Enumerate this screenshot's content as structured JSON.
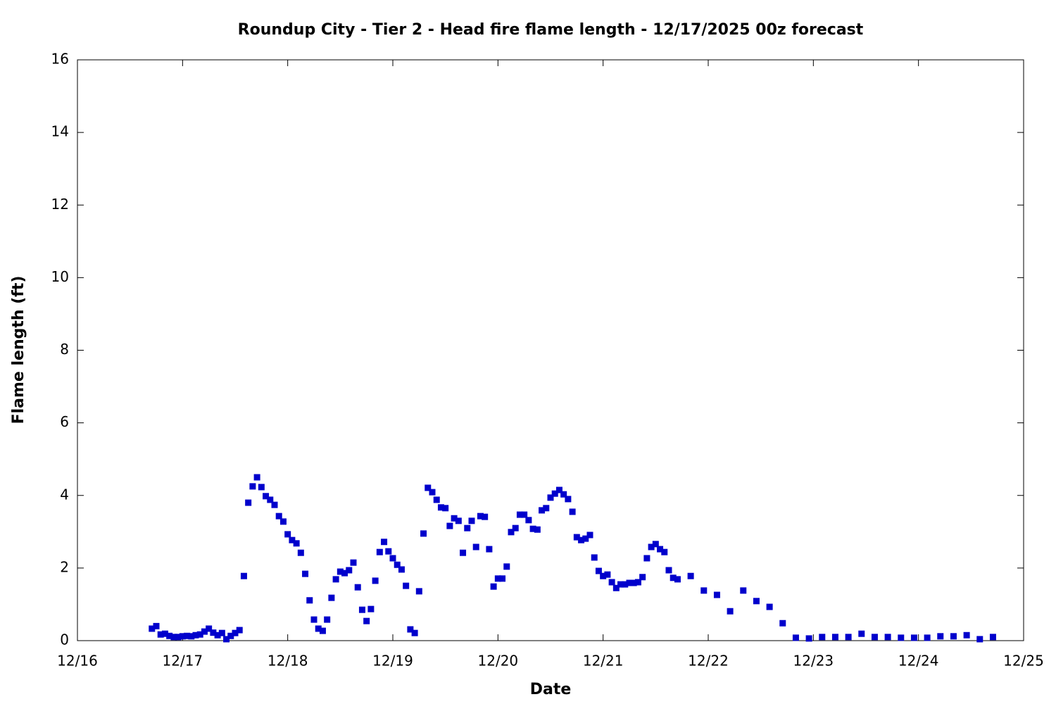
{
  "chart_data": {
    "type": "scatter",
    "title": "Roundup City - Tier 2 - Head fire flame length - 12/17/2025 00z forecast",
    "xlabel": "Date",
    "ylabel": "Flame length (ft)",
    "xlim": [
      0,
      216
    ],
    "xticks": [
      {
        "value": 0,
        "label": "12/16"
      },
      {
        "value": 24,
        "label": "12/17"
      },
      {
        "value": 48,
        "label": "12/18"
      },
      {
        "value": 72,
        "label": "12/19"
      },
      {
        "value": 96,
        "label": "12/20"
      },
      {
        "value": 120,
        "label": "12/21"
      },
      {
        "value": 144,
        "label": "12/22"
      },
      {
        "value": 168,
        "label": "12/23"
      },
      {
        "value": 192,
        "label": "12/24"
      },
      {
        "value": 216,
        "label": "12/25"
      }
    ],
    "ylim": [
      0,
      16
    ],
    "yticks": [
      0,
      2,
      4,
      6,
      8,
      10,
      12,
      14,
      16
    ],
    "color": "#0000cc",
    "x": [
      17,
      18,
      19,
      20,
      21,
      22,
      23,
      24,
      25,
      26,
      27,
      28,
      29,
      30,
      31,
      32,
      33,
      34,
      35,
      36,
      37,
      38,
      39,
      40,
      41,
      42,
      43,
      44,
      45,
      46,
      47,
      48,
      49,
      50,
      51,
      52,
      53,
      54,
      55,
      56,
      57,
      58,
      59,
      60,
      61,
      62,
      63,
      64,
      65,
      66,
      67,
      68,
      69,
      70,
      71,
      72,
      73,
      74,
      75,
      76,
      77,
      78,
      79,
      80,
      81,
      82,
      83,
      84,
      85,
      86,
      87,
      88,
      89,
      90,
      91,
      92,
      93,
      94,
      95,
      96,
      97,
      98,
      99,
      100,
      101,
      102,
      103,
      104,
      105,
      106,
      107,
      108,
      109,
      110,
      111,
      112,
      113,
      114,
      115,
      116,
      117,
      118,
      119,
      120,
      121,
      122,
      123,
      124,
      125,
      126,
      127,
      128,
      129,
      130,
      131,
      132,
      133,
      134,
      135,
      136,
      137,
      140,
      143,
      146,
      149,
      152,
      155,
      158,
      161,
      164,
      167,
      170,
      173,
      176,
      179,
      182,
      185,
      188,
      191,
      194,
      197,
      200,
      203,
      206,
      209
    ],
    "values": [
      0.33,
      0.4,
      0.17,
      0.19,
      0.13,
      0.1,
      0.1,
      0.12,
      0.13,
      0.12,
      0.15,
      0.17,
      0.25,
      0.33,
      0.22,
      0.15,
      0.21,
      0.04,
      0.13,
      0.21,
      0.29,
      1.78,
      3.8,
      4.25,
      4.5,
      4.23,
      3.98,
      3.88,
      3.74,
      3.43,
      3.28,
      2.93,
      2.77,
      2.68,
      2.42,
      1.84,
      1.11,
      0.58,
      0.33,
      0.27,
      0.58,
      1.18,
      1.69,
      1.9,
      1.86,
      1.94,
      2.15,
      1.47,
      0.85,
      0.54,
      0.87,
      1.65,
      2.44,
      2.72,
      2.46,
      2.27,
      2.09,
      1.96,
      1.51,
      0.31,
      0.21,
      1.36,
      2.95,
      4.21,
      4.09,
      3.88,
      3.67,
      3.65,
      3.16,
      3.37,
      3.3,
      2.42,
      3.1,
      3.3,
      2.58,
      3.43,
      3.41,
      2.52,
      1.49,
      1.71,
      1.71,
      2.04,
      2.99,
      3.1,
      3.47,
      3.47,
      3.32,
      3.08,
      3.06,
      3.59,
      3.65,
      3.94,
      4.05,
      4.15,
      4.03,
      3.9,
      3.55,
      2.85,
      2.77,
      2.81,
      2.91,
      2.29,
      1.92,
      1.78,
      1.82,
      1.61,
      1.45,
      1.55,
      1.55,
      1.59,
      1.59,
      1.61,
      1.75,
      2.27,
      2.58,
      2.66,
      2.52,
      2.44,
      1.94,
      1.73,
      1.69,
      1.78,
      1.38,
      1.26,
      0.81,
      1.38,
      1.09,
      0.93,
      0.48,
      0.08,
      0.06,
      0.1,
      0.1,
      0.1,
      0.19,
      0.1,
      0.1,
      0.08,
      0.08,
      0.08,
      0.12,
      0.12,
      0.15,
      0.04,
      0.1
    ]
  }
}
